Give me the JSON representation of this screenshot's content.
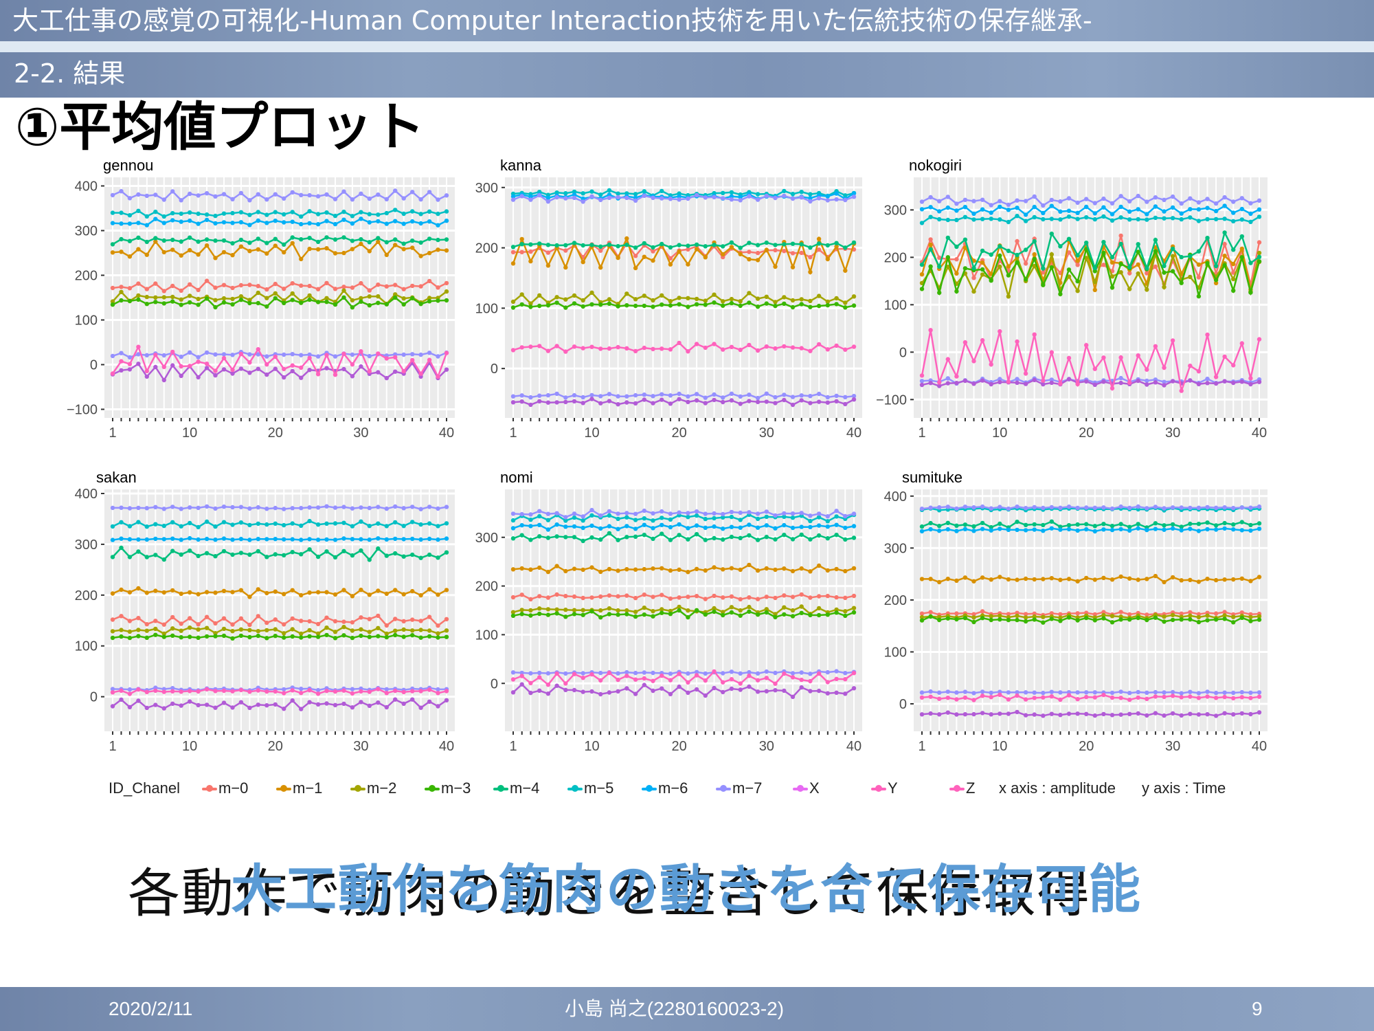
{
  "header": {
    "title": "大工仕事の感覚の可視化-Human Computer Interaction技術を用いた伝統技術の保存継承-",
    "section": "2-2. 結果"
  },
  "heading": "①平均値プロット",
  "legend": {
    "title": "ID_Chanel",
    "items": [
      {
        "label": "m−0",
        "color": "#F8766D"
      },
      {
        "label": "m−1",
        "color": "#D89000"
      },
      {
        "label": "m−2",
        "color": "#A3A500"
      },
      {
        "label": "m−3",
        "color": "#39B600"
      },
      {
        "label": "m−4",
        "color": "#00BF7D"
      },
      {
        "label": "m−5",
        "color": "#00BFC4"
      },
      {
        "label": "m−6",
        "color": "#00B0F6"
      },
      {
        "label": "m−7",
        "color": "#9590FF"
      },
      {
        "label": "X",
        "color": "#E76BF3"
      },
      {
        "label": "Y",
        "color": "#FF62BC"
      },
      {
        "label": "Z",
        "color": "#FF62BC"
      }
    ],
    "x_note": "x axis : amplitude",
    "y_note": "y axis : Time"
  },
  "bottom": {
    "black_text": "各動作で筋肉の動きを整合して保存取得",
    "blue_text": "大工動作を筋肉の動きを合て保存可能"
  },
  "footer": {
    "date": "2020/2/11",
    "author": "小島 尚之(2280160023-2)",
    "page": "9"
  },
  "chart_data": [
    {
      "type": "line",
      "title": "gennou",
      "x_ticks": [
        1,
        10,
        20,
        30,
        40
      ],
      "ylim": [
        -110,
        410
      ],
      "y_ticks": [
        -100,
        0,
        100,
        200,
        300,
        400
      ],
      "series": [
        {
          "name": "m−0",
          "base": 175,
          "amp": 12
        },
        {
          "name": "m−1",
          "base": 255,
          "amp": 20
        },
        {
          "name": "m−2",
          "base": 150,
          "amp": 15
        },
        {
          "name": "m−3",
          "base": 140,
          "amp": 12
        },
        {
          "name": "m−4",
          "base": 278,
          "amp": 10
        },
        {
          "name": "m−5",
          "base": 338,
          "amp": 8
        },
        {
          "name": "m−6",
          "base": 318,
          "amp": 8
        },
        {
          "name": "m−7",
          "base": 380,
          "amp": 12
        },
        {
          "name": "X",
          "base": 22,
          "amp": 6
        },
        {
          "name": "Y",
          "base": -15,
          "amp": 20
        },
        {
          "name": "Z",
          "base": 5,
          "amp": 35
        }
      ]
    },
    {
      "type": "line",
      "title": "kanna",
      "x_ticks": [
        1,
        10,
        20,
        30,
        40
      ],
      "ylim": [
        -75,
        310
      ],
      "y_ticks": [
        0,
        100,
        200,
        300
      ],
      "series": [
        {
          "name": "m−0",
          "base": 195,
          "amp": 15
        },
        {
          "name": "m−1",
          "base": 190,
          "amp": 30
        },
        {
          "name": "m−2",
          "base": 115,
          "amp": 10
        },
        {
          "name": "m−3",
          "base": 105,
          "amp": 5
        },
        {
          "name": "m−4",
          "base": 205,
          "amp": 5
        },
        {
          "name": "m−5",
          "base": 290,
          "amp": 5
        },
        {
          "name": "m−6",
          "base": 285,
          "amp": 5
        },
        {
          "name": "m−7",
          "base": 282,
          "amp": 6
        },
        {
          "name": "X",
          "base": -45,
          "amp": 4
        },
        {
          "name": "Y",
          "base": -55,
          "amp": 5
        },
        {
          "name": "Z",
          "base": 35,
          "amp": 8
        }
      ]
    },
    {
      "type": "line",
      "title": "nokogiri",
      "x_ticks": [
        1,
        10,
        20,
        30,
        40
      ],
      "ylim": [
        -130,
        360
      ],
      "y_ticks": [
        -100,
        0,
        100,
        200,
        300
      ],
      "series": [
        {
          "name": "m−0",
          "base": 190,
          "amp": 60
        },
        {
          "name": "m−1",
          "base": 185,
          "amp": 55
        },
        {
          "name": "m−2",
          "base": 160,
          "amp": 50
        },
        {
          "name": "m−3",
          "base": 170,
          "amp": 55
        },
        {
          "name": "m−4",
          "base": 210,
          "amp": 45
        },
        {
          "name": "m−5",
          "base": 280,
          "amp": 8
        },
        {
          "name": "m−6",
          "base": 300,
          "amp": 10
        },
        {
          "name": "m−7",
          "base": 320,
          "amp": 12
        },
        {
          "name": "X",
          "base": -60,
          "amp": 6
        },
        {
          "name": "Y",
          "base": -65,
          "amp": 8
        },
        {
          "name": "Z",
          "base": -20,
          "amp": 70
        }
      ]
    },
    {
      "type": "line",
      "title": "sakan",
      "x_ticks": [
        1,
        10,
        20,
        30,
        40
      ],
      "ylim": [
        -60,
        400
      ],
      "y_ticks": [
        0,
        100,
        200,
        300,
        400
      ],
      "series": [
        {
          "name": "m−0",
          "base": 150,
          "amp": 12
        },
        {
          "name": "m−1",
          "base": 205,
          "amp": 8
        },
        {
          "name": "m−2",
          "base": 130,
          "amp": 8
        },
        {
          "name": "m−3",
          "base": 118,
          "amp": 4
        },
        {
          "name": "m−4",
          "base": 280,
          "amp": 12
        },
        {
          "name": "m−5",
          "base": 340,
          "amp": 6
        },
        {
          "name": "m−6",
          "base": 310,
          "amp": 2
        },
        {
          "name": "m−7",
          "base": 372,
          "amp": 3
        },
        {
          "name": "X",
          "base": 15,
          "amp": 3
        },
        {
          "name": "Y",
          "base": -15,
          "amp": 10
        },
        {
          "name": "Z",
          "base": 10,
          "amp": 5
        }
      ]
    },
    {
      "type": "line",
      "title": "nomi",
      "x_ticks": [
        1,
        10,
        20,
        30,
        40
      ],
      "ylim": [
        -90,
        390
      ],
      "y_ticks": [
        0,
        100,
        200,
        300
      ],
      "series": [
        {
          "name": "m−0",
          "base": 178,
          "amp": 6
        },
        {
          "name": "m−1",
          "base": 235,
          "amp": 8
        },
        {
          "name": "m−2",
          "base": 150,
          "amp": 8
        },
        {
          "name": "m−3",
          "base": 142,
          "amp": 8
        },
        {
          "name": "m−4",
          "base": 300,
          "amp": 8
        },
        {
          "name": "m−5",
          "base": 340,
          "amp": 8
        },
        {
          "name": "m−6",
          "base": 322,
          "amp": 6
        },
        {
          "name": "m−7",
          "base": 348,
          "amp": 8
        },
        {
          "name": "X",
          "base": 22,
          "amp": 3
        },
        {
          "name": "Y",
          "base": -15,
          "amp": 15
        },
        {
          "name": "Z",
          "base": 10,
          "amp": 15
        }
      ]
    },
    {
      "type": "line",
      "title": "sumituke",
      "x_ticks": [
        1,
        10,
        20,
        30,
        40
      ],
      "ylim": [
        -45,
        405
      ],
      "y_ticks": [
        0,
        100,
        200,
        300,
        400
      ],
      "series": [
        {
          "name": "m−0",
          "base": 174,
          "amp": 4
        },
        {
          "name": "m−1",
          "base": 240,
          "amp": 6
        },
        {
          "name": "m−2",
          "base": 168,
          "amp": 4
        },
        {
          "name": "m−3",
          "base": 162,
          "amp": 6
        },
        {
          "name": "m−4",
          "base": 345,
          "amp": 6
        },
        {
          "name": "m−5",
          "base": 375,
          "amp": 3
        },
        {
          "name": "m−6",
          "base": 335,
          "amp": 3
        },
        {
          "name": "m−7",
          "base": 378,
          "amp": 3
        },
        {
          "name": "X",
          "base": 22,
          "amp": 2
        },
        {
          "name": "Y",
          "base": -20,
          "amp": 4
        },
        {
          "name": "Z",
          "base": 12,
          "amp": 6
        }
      ]
    }
  ]
}
